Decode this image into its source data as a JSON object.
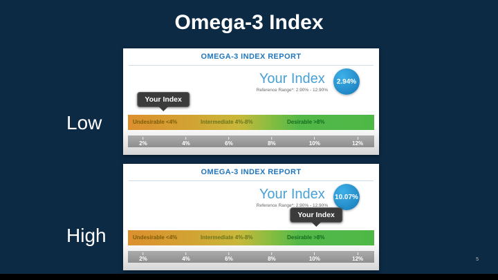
{
  "title": "Omega-3 Index",
  "page_number": "5",
  "scale_ticks": [
    "2%",
    "4%",
    "6%",
    "8%",
    "10%",
    "12%"
  ],
  "zones": {
    "undesirable": "Undesirable <4%",
    "intermediate": "Intermediate 4%-8%",
    "desirable": "Desirable >8%"
  },
  "colors": {
    "background": "#0d2a44",
    "report_blue": "#2176bc",
    "index_blue": "#47a0d6",
    "badge_blue": "#1e8cc8",
    "bar_orange": "#dc8f2e",
    "bar_green": "#4eb847",
    "tooltip_bg": "#3b3b3b"
  },
  "panels": [
    {
      "side_label": "Low",
      "report_title": "OMEGA-3 INDEX REPORT",
      "your_index_label": "Your Index",
      "value": "2.94%",
      "reference_range": "Reference Range*: 2.90% - 12.90%",
      "marker_label": "Your Index",
      "marker_percent": 2.94
    },
    {
      "side_label": "High",
      "report_title": "OMEGA-3 INDEX REPORT",
      "your_index_label": "Your Index",
      "value": "10.07%",
      "reference_range": "Reference Range*: 2.90% - 12.90%",
      "marker_label": "Your Index",
      "marker_percent": 10.07
    }
  ],
  "chart_data": [
    {
      "type": "gauge",
      "title": "OMEGA-3 INDEX REPORT",
      "annotation": "Low",
      "value": 2.94,
      "unit": "%",
      "axis_range": [
        2,
        12
      ],
      "axis_ticks": [
        "2%",
        "4%",
        "6%",
        "8%",
        "10%",
        "12%"
      ],
      "zones": [
        {
          "label": "Undesirable <4%",
          "range": [
            0,
            4
          ],
          "color": "orange"
        },
        {
          "label": "Intermediate 4%-8%",
          "range": [
            4,
            8
          ],
          "color": "yellow-green"
        },
        {
          "label": "Desirable >8%",
          "range": [
            8,
            12
          ],
          "color": "green"
        }
      ],
      "reference_range": "2.90% - 12.90%"
    },
    {
      "type": "gauge",
      "title": "OMEGA-3 INDEX REPORT",
      "annotation": "High",
      "value": 10.07,
      "unit": "%",
      "axis_range": [
        2,
        12
      ],
      "axis_ticks": [
        "2%",
        "4%",
        "6%",
        "8%",
        "10%",
        "12%"
      ],
      "zones": [
        {
          "label": "Undesirable <4%",
          "range": [
            0,
            4
          ],
          "color": "orange"
        },
        {
          "label": "Intermediate 4%-8%",
          "range": [
            4,
            8
          ],
          "color": "yellow-green"
        },
        {
          "label": "Desirable >8%",
          "range": [
            8,
            12
          ],
          "color": "green"
        }
      ],
      "reference_range": "2.90% - 12.90%"
    }
  ]
}
